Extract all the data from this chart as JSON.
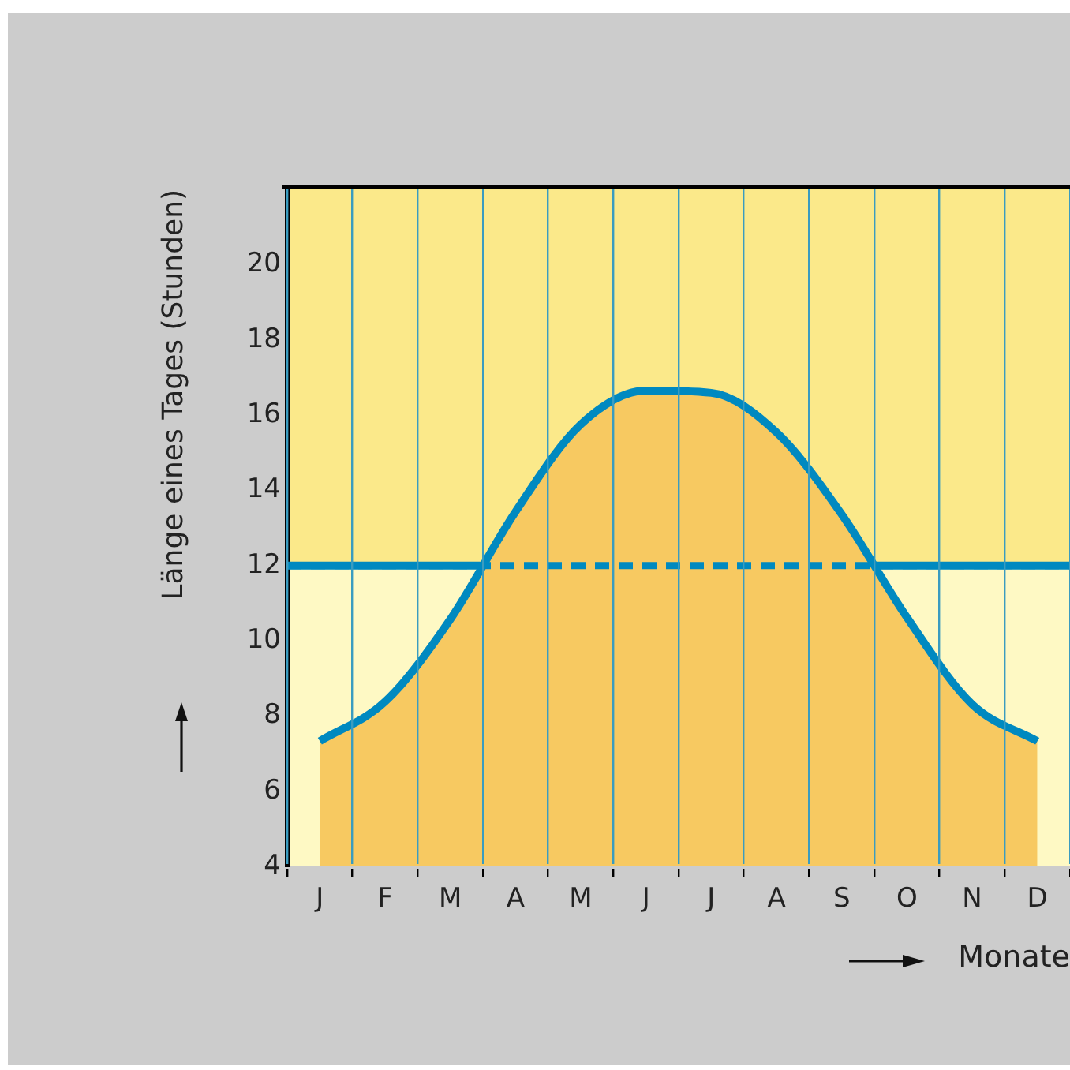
{
  "chart_data": {
    "type": "line",
    "xlabel": "Monate",
    "ylabel": "Länge eines Tages (Stunden)",
    "categories": [
      "J",
      "F",
      "M",
      "A",
      "M",
      "J",
      "J",
      "A",
      "S",
      "O",
      "N",
      "D"
    ],
    "ylim": [
      4,
      22
    ],
    "yticks": [
      4,
      6,
      8,
      10,
      12,
      14,
      16,
      18,
      20
    ],
    "grid": "x",
    "legend": false,
    "marker": "none",
    "bands": [
      {
        "axis": "y",
        "from": 12,
        "to": 22,
        "color": "#fbe98a"
      },
      {
        "axis": "y",
        "from": 4,
        "to": 12,
        "color": "#fef9c4"
      }
    ],
    "ref_lines": [
      {
        "axis": "y",
        "value": 12,
        "color": "#0089c0",
        "line_style": "solid"
      },
      {
        "axis": "y",
        "value": 12,
        "color": "#0089c0",
        "line_style": "dashed"
      }
    ],
    "series": [
      {
        "type": "area",
        "color": "#f7c961",
        "values": [
          7.33,
          8.38,
          10.57,
          13.43,
          15.75,
          16.65,
          16.59,
          15.54,
          13.36,
          10.62,
          8.31,
          7.33
        ]
      },
      {
        "color": "#0089c0",
        "values": [
          7.33,
          8.38,
          10.57,
          13.43,
          15.75,
          16.65,
          16.59,
          15.54,
          13.36,
          10.62,
          8.31,
          7.33
        ]
      }
    ]
  }
}
